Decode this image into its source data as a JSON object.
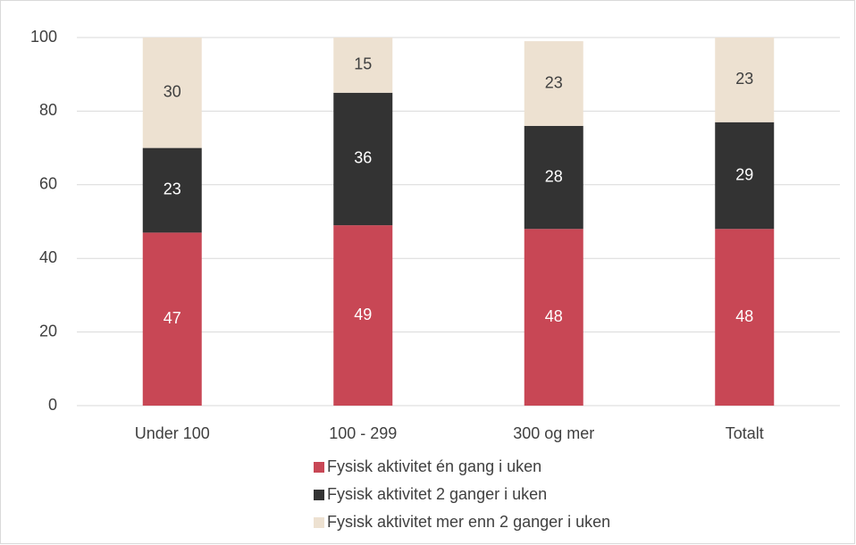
{
  "chart_data": {
    "type": "bar",
    "stacked": true,
    "categories": [
      "Under 100",
      "100 - 299",
      "300 og mer",
      "Totalt"
    ],
    "series": [
      {
        "name": "Fysisk aktivitet én gang i uken",
        "color": "#c84755",
        "label_color": "#ffffff",
        "values": [
          47,
          49,
          48,
          48
        ]
      },
      {
        "name": "Fysisk aktivitet 2 ganger i uken",
        "color": "#333333",
        "label_color": "#ffffff",
        "values": [
          23,
          36,
          28,
          29
        ]
      },
      {
        "name": "Fysisk aktivitet mer enn 2 ganger i uken",
        "color": "#ede1d1",
        "label_color": "#404040",
        "values": [
          30,
          15,
          23,
          23
        ]
      }
    ],
    "ylim": [
      0,
      100
    ],
    "yticks": [
      0,
      20,
      40,
      60,
      80,
      100
    ],
    "grid": true,
    "legend": "bottom"
  }
}
